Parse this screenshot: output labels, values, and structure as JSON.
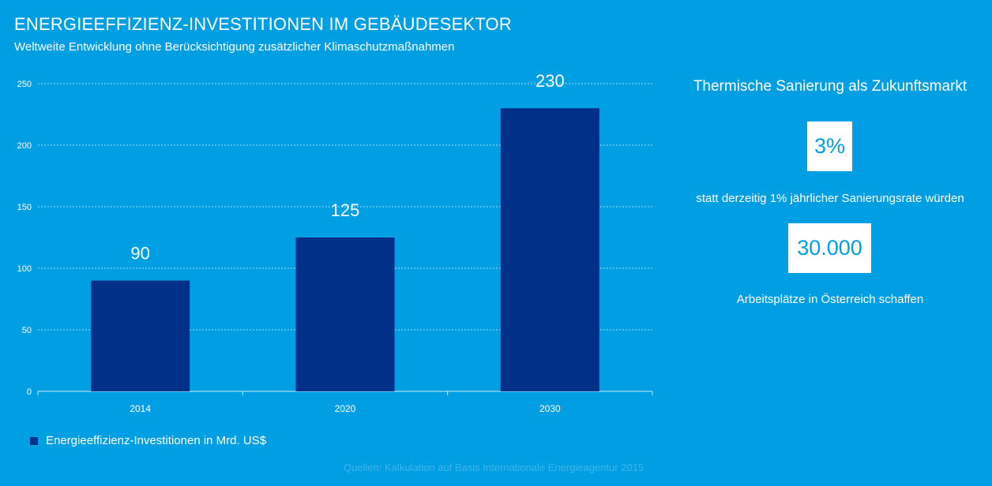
{
  "header": {
    "title": "ENERGIEEFFIZIENZ-INVESTITIONEN IM GEBÄUDESEKTOR",
    "subtitle": "Weltweite Entwicklung ohne Berücksichtigung zusätzlicher Klimaschutzmaßnahmen"
  },
  "chart_data": {
    "type": "bar",
    "title": "ENERGIEEFFIZIENZ-INVESTITIONEN IM GEBÄUDESEKTOR",
    "categories": [
      "2014",
      "2020",
      "2030"
    ],
    "series": [
      {
        "name": "Energieeffizienz-Investitionen in Mrd. US$",
        "values": [
          90,
          125,
          230
        ]
      }
    ],
    "ylim": [
      0,
      250
    ],
    "yticks": [
      0,
      50,
      100,
      150,
      200,
      250
    ],
    "xlabel": "",
    "ylabel": "",
    "grid": true,
    "legend": "bottom-left",
    "colors": {
      "bar": "#003087",
      "background": "#009fe3",
      "text": "#ffffff",
      "grid": "#ffffff"
    }
  },
  "legend": {
    "label": "Energieeffizienz-Investitionen in Mrd. US$"
  },
  "source": "Quellen: Kalkulation auf Basis Internationale Energieagentur 2015",
  "side_panel": {
    "heading": "Thermische Sanierung als Zukunftsmarkt",
    "stat1_value": "3%",
    "stat1_text": "statt derzeitig 1% jährlicher Sanierungsrate würden",
    "stat2_value": "30.000",
    "stat2_text": "Arbeitsplätze in Österreich schaffen"
  }
}
